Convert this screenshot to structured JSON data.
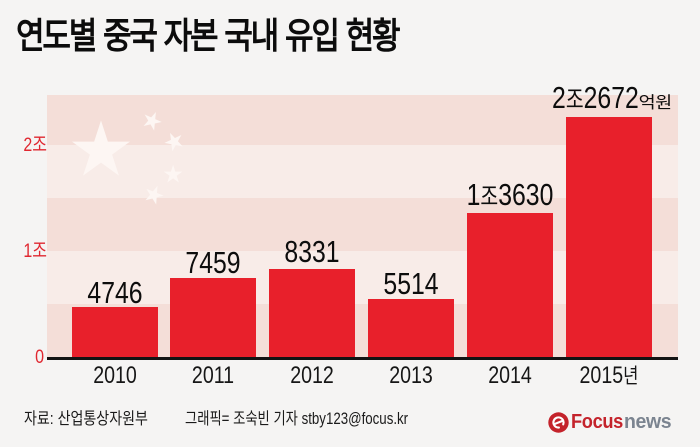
{
  "title": "연도별 중국 자본 국내 유입 현황",
  "chart_data": {
    "type": "bar",
    "title": "연도별 중국 자본 국내 유입 현황",
    "categories": [
      "2010",
      "2011",
      "2012",
      "2013",
      "2014",
      "2015년"
    ],
    "values": [
      4746,
      7459,
      8331,
      5514,
      13630,
      22672
    ],
    "value_labels": [
      "4746",
      "7459",
      "8331",
      "5514",
      "1조3630",
      "2조2672"
    ],
    "value_label_suffix": "억원",
    "unit": "억원",
    "y_ticks": [
      "2조",
      "1조",
      "0"
    ],
    "ylim": [
      0,
      24750
    ],
    "grid": false,
    "legend_position": "none",
    "bar_color": "#e8202b",
    "background_motif": "china-flag-stars-stripes"
  },
  "y_axis": {
    "tick_2": "2조",
    "tick_1": "1조",
    "tick_0": "0"
  },
  "footer": {
    "source": "자료: 산업통상자원부",
    "credit": "그래픽= 조숙빈 기자 stby123@focus.kr"
  },
  "logo": {
    "brand_primary": "Focus",
    "brand_secondary": "news",
    "icon": "swirl-e-icon"
  },
  "colors": {
    "page_background": "#f5f4f3",
    "stripe_dark": "#f4ded8",
    "stripe_light": "#f8ece8",
    "star": "#fdf6f3",
    "bar_red": "#e8202b",
    "axis_label_red": "#e02730",
    "axis_line": "#131313",
    "text_black": "#0d0d0d",
    "logo_red": "#c4232b",
    "logo_gray": "#7b8490"
  }
}
